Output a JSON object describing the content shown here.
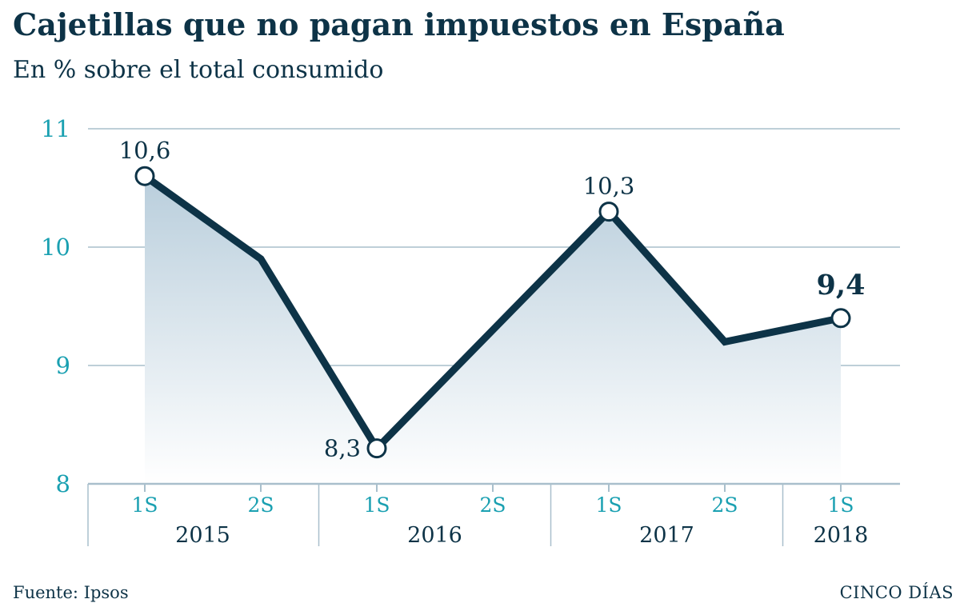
{
  "header": {
    "title": "Cajetillas que no pagan impuestos en España",
    "subtitle": "En % sobre el total consumido"
  },
  "footer": {
    "source": "Fuente: Ipsos",
    "brand": "CINCO DÍAS"
  },
  "colors": {
    "line": "#0d3347",
    "axis_tick": "#1aa0b1",
    "grid": "#a9bfcc",
    "area_top": "#b9cedc",
    "area_bottom": "#ffffff"
  },
  "chart_data": {
    "type": "area",
    "title": "Cajetillas que no pagan impuestos en España",
    "subtitle": "En % sobre el total consumido",
    "xlabel": "",
    "ylabel": "",
    "ylim": [
      8,
      11
    ],
    "yticks": [
      8,
      9,
      10,
      11
    ],
    "ytick_labels": [
      "8",
      "9",
      "10",
      "11"
    ],
    "grid": true,
    "categories": [
      "1S",
      "2S",
      "1S",
      "2S",
      "1S",
      "2S",
      "1S"
    ],
    "values": [
      10.6,
      9.9,
      8.3,
      9.3,
      10.3,
      9.2,
      9.4
    ],
    "years": [
      {
        "label": "2015",
        "start": 0,
        "end": 1
      },
      {
        "label": "2016",
        "start": 2,
        "end": 3
      },
      {
        "label": "2017",
        "start": 4,
        "end": 5
      },
      {
        "label": "2018",
        "start": 6,
        "end": 6
      }
    ],
    "annotations": [
      {
        "index": 0,
        "text": "10,6",
        "pos": "above",
        "bold": false
      },
      {
        "index": 2,
        "text": "8,3",
        "pos": "left",
        "bold": false
      },
      {
        "index": 4,
        "text": "10,3",
        "pos": "above",
        "bold": false
      },
      {
        "index": 6,
        "text": "9,4",
        "pos": "above",
        "bold": true
      }
    ],
    "marked_points": [
      0,
      2,
      4,
      6
    ]
  }
}
